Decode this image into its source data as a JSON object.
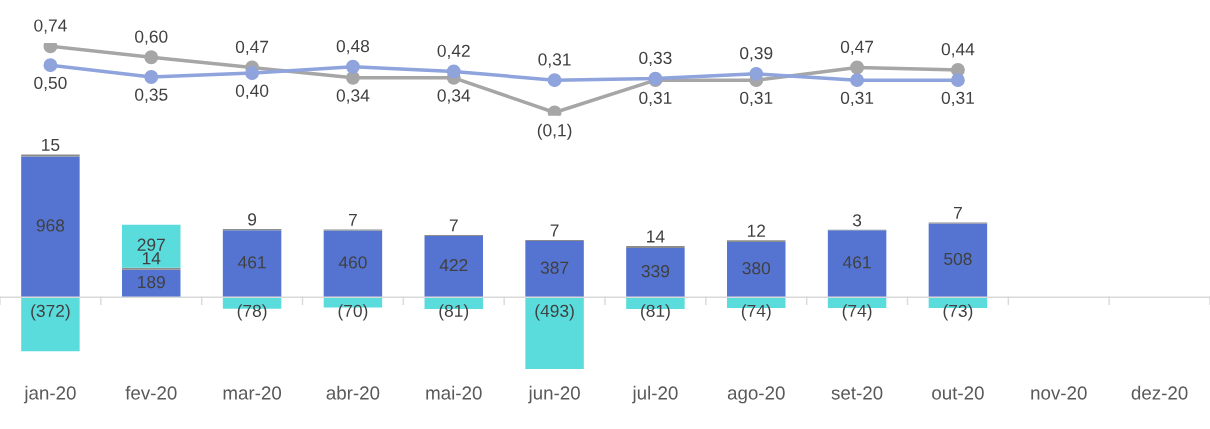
{
  "chart_data": [
    {
      "type": "line",
      "tick_labels": false,
      "marker": "circle",
      "categories": [
        null,
        null,
        null,
        null,
        null,
        null,
        null,
        null,
        null,
        null,
        null,
        null
      ],
      "series": [
        {
          "color": "#a6a6a6",
          "values": [
            0.74,
            0.6,
            0.47,
            0.34,
            0.34,
            -0.1,
            0.31,
            0.31,
            0.47,
            0.44,
            null,
            null
          ],
          "value_labels": [
            "0,74",
            "0,60",
            "0,47",
            "0,34",
            "0,34",
            "(0,1)",
            "0,31",
            "0,31",
            "0,47",
            "0,44",
            null,
            null
          ]
        },
        {
          "color": "#8fa3dc",
          "values": [
            0.5,
            0.35,
            0.4,
            0.48,
            0.42,
            0.31,
            0.33,
            0.39,
            0.31,
            0.31,
            null,
            null
          ],
          "value_labels": [
            "0,50",
            "0,35",
            "0,40",
            "0,48",
            "0,42",
            "0,31",
            "0,33",
            "0,39",
            "0,31",
            "0,31",
            null,
            null
          ]
        }
      ]
    },
    {
      "type": "bar",
      "stacked": true,
      "tick_labels": "x",
      "categories": [
        "jan-20",
        "fev-20",
        "mar-20",
        "abr-20",
        "mai-20",
        "jun-20",
        "jul-20",
        "ago-20",
        "set-20",
        "out-20",
        "nov-20",
        "dez-20"
      ],
      "series": [
        {
          "color": "#5574d2",
          "values": [
            968,
            189,
            461,
            460,
            422,
            387,
            339,
            380,
            461,
            508,
            null,
            null
          ],
          "value_labels": [
            "968",
            "189",
            "461",
            "460",
            "422",
            "387",
            "339",
            "380",
            "461",
            "508",
            null,
            null
          ]
        },
        {
          "color": "#8c8c8c",
          "values": [
            15,
            14,
            9,
            7,
            7,
            7,
            14,
            12,
            3,
            7,
            null,
            null
          ],
          "value_labels": [
            "15",
            "14",
            "9",
            "7",
            "7",
            "7",
            "14",
            "12",
            "3",
            "7",
            null,
            null
          ]
        },
        {
          "color": "#5adcdc",
          "values": [
            -372,
            297,
            -78,
            -70,
            -81,
            -493,
            -81,
            -74,
            -74,
            -73,
            null,
            null
          ],
          "value_labels": [
            "(372)",
            "297",
            "(78)",
            "(70)",
            "(81)",
            "(493)",
            "(81)",
            "(74)",
            "(74)",
            "(73)",
            null,
            null
          ]
        }
      ]
    }
  ]
}
